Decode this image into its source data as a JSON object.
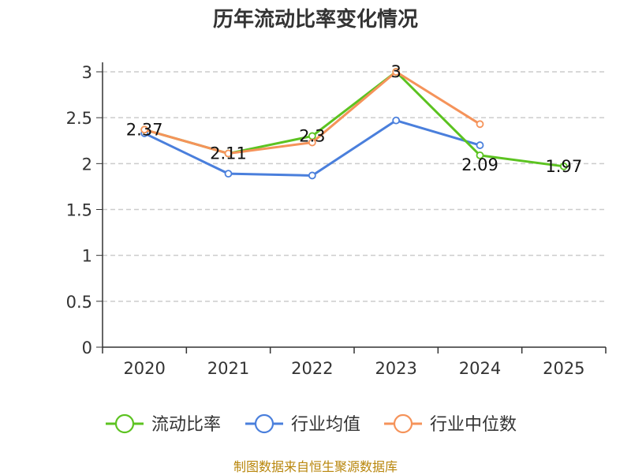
{
  "chart_data": {
    "type": "line",
    "title": "历年流动比率变化情况",
    "categories": [
      "2020",
      "2021",
      "2022",
      "2023",
      "2024",
      "2025"
    ],
    "y_ticks": [
      "0",
      "0.5",
      "1",
      "1.5",
      "2",
      "2.5",
      "3"
    ],
    "ylim": [
      0,
      3
    ],
    "grid": "horizontal dashed",
    "legend_position": "bottom",
    "series": [
      {
        "name": "流动比率",
        "color": "#5cc321",
        "values": [
          2.37,
          2.11,
          2.3,
          3.0,
          2.09,
          1.97
        ],
        "labels": [
          "2.37",
          "2.11",
          "2.3",
          "3",
          "2.09",
          "1.97"
        ]
      },
      {
        "name": "行业均值",
        "color": "#4a7fdc",
        "values": [
          2.33,
          1.89,
          1.87,
          2.47,
          2.2,
          null
        ]
      },
      {
        "name": "行业中位数",
        "color": "#f5935a",
        "values": [
          2.37,
          2.11,
          2.23,
          3.0,
          2.43,
          null
        ]
      }
    ]
  },
  "source": "制图数据来自恒生聚源数据库"
}
